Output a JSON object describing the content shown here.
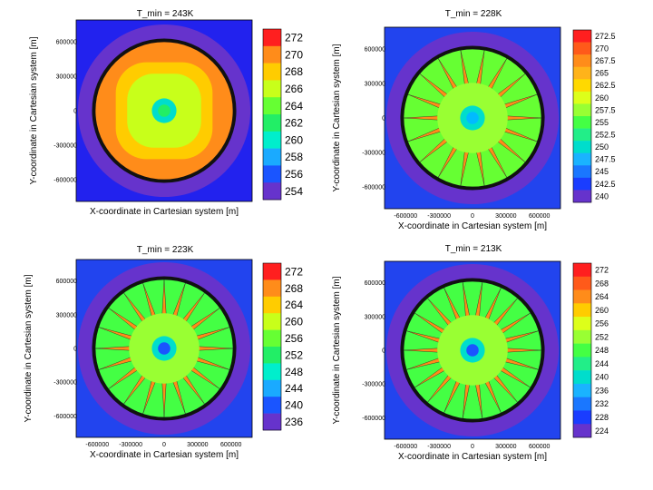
{
  "chart_data": [
    {
      "type": "heatmap",
      "title": "T_min = 243K",
      "xlabel": "X-coordinate in Cartesian system [m]",
      "ylabel": "Y-coordinate in Cartesian system [m]",
      "x_ticks": [],
      "y_ticks": [
        "600000",
        "300000",
        "0",
        "-300000",
        "-600000"
      ],
      "colorbar_ticks": [
        "272",
        "270",
        "268",
        "266",
        "264",
        "262",
        "260",
        "258",
        "256",
        "254"
      ],
      "colors": [
        "#ff1f1f",
        "#ff8c1a",
        "#ffcc00",
        "#c8ff1a",
        "#66ff33",
        "#22ee66",
        "#00eecc",
        "#1aaaff",
        "#1a55ff",
        "#6633cc"
      ],
      "pattern": {
        "outer": "#2222ee",
        "rim": "#6633cc",
        "disc": "#ff8c1a",
        "center": "#22ee66",
        "spikes": 0
      }
    },
    {
      "type": "heatmap",
      "title": "T_min = 228K",
      "xlabel": "X-coordinate in Cartesian system [m]",
      "ylabel": "Y-coordinate in Cartesian system [m]",
      "x_ticks": [
        "-600000",
        "-300000",
        "0",
        "300000",
        "600000"
      ],
      "y_ticks": [
        "600000",
        "300000",
        "0",
        "-300000",
        "-600000"
      ],
      "colorbar_ticks": [
        "272.5",
        "270",
        "267.5",
        "265",
        "262.5",
        "260",
        "257.5",
        "255",
        "252.5",
        "250",
        "247.5",
        "245",
        "242.5",
        "240"
      ],
      "colors": [
        "#ff1f1f",
        "#ff5a1a",
        "#ff8c1a",
        "#ffb31a",
        "#ffd900",
        "#ddff1a",
        "#99ff33",
        "#44ff44",
        "#22ee88",
        "#00ddcc",
        "#1ab3ff",
        "#1a77ff",
        "#1a3dff",
        "#6633cc"
      ],
      "pattern": {
        "outer": "#2244ee",
        "rim": "#6633cc",
        "disc": "#66ff33",
        "center": "#00bbff",
        "spikes": 18
      }
    },
    {
      "type": "heatmap",
      "title": "T_min = 223K",
      "xlabel": "X-coordinate in Cartesian system [m]",
      "ylabel": "Y-coordinate in Cartesian system [m]",
      "x_ticks": [
        "-600000",
        "-300000",
        "0",
        "300000",
        "600000"
      ],
      "y_ticks": [
        "600000",
        "300000",
        "0",
        "-300000",
        "-600000"
      ],
      "colorbar_ticks": [
        "272",
        "268",
        "264",
        "260",
        "256",
        "252",
        "248",
        "244",
        "240",
        "236"
      ],
      "colors": [
        "#ff1f1f",
        "#ff8c1a",
        "#ffcc00",
        "#c8ff1a",
        "#66ff33",
        "#22ee66",
        "#00eecc",
        "#1aaaff",
        "#1a55ff",
        "#6633cc"
      ],
      "pattern": {
        "outer": "#2244ee",
        "rim": "#6633cc",
        "disc": "#44ff44",
        "center": "#1a55ff",
        "spikes": 20
      }
    },
    {
      "type": "heatmap",
      "title": "T_min = 213K",
      "xlabel": "X-coordinate in Cartesian system [m]",
      "ylabel": "Y-coordinate in Cartesian system [m]",
      "x_ticks": [
        "-600000",
        "-300000",
        "0",
        "300000",
        "600000"
      ],
      "y_ticks": [
        "600000",
        "300000",
        "0",
        "-300000",
        "-600000"
      ],
      "colorbar_ticks": [
        "272",
        "268",
        "264",
        "260",
        "256",
        "252",
        "248",
        "244",
        "240",
        "236",
        "232",
        "228",
        "224"
      ],
      "colors": [
        "#ff1f1f",
        "#ff5a1a",
        "#ff8c1a",
        "#ffcc00",
        "#ddff1a",
        "#99ff33",
        "#44ff44",
        "#22ee88",
        "#00ddcc",
        "#1ab3ff",
        "#1a77ff",
        "#1a3dff",
        "#6633cc"
      ],
      "pattern": {
        "outer": "#2244ee",
        "rim": "#6633cc",
        "disc": "#44ff44",
        "center": "#1a55ff",
        "spikes": 22
      }
    }
  ]
}
